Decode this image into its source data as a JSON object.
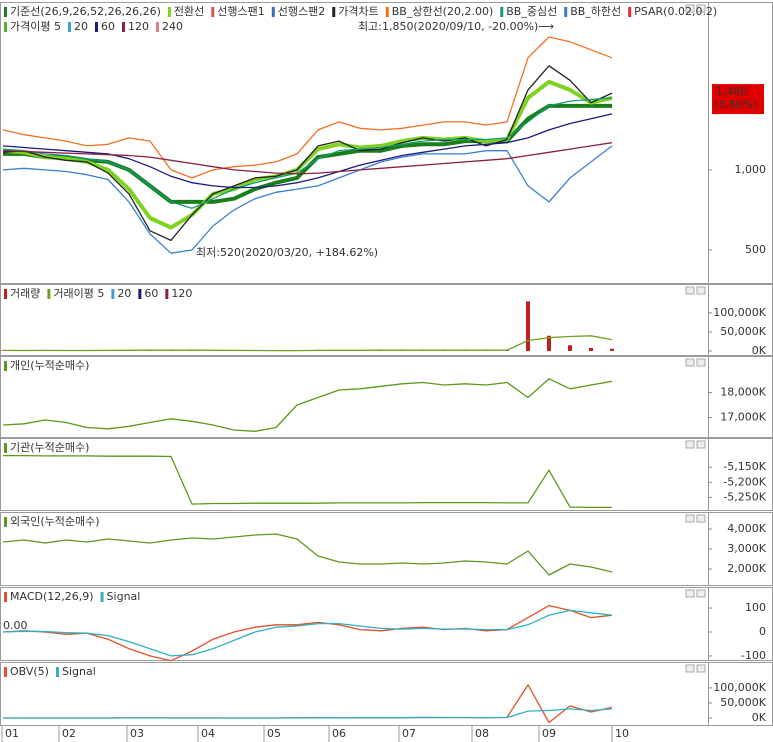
{
  "chart_data": [
    {
      "type": "line",
      "ylim": [
        300,
        2030
      ],
      "yticks": [
        {
          "value": 1000,
          "label": "1,000"
        },
        500
      ],
      "series": [
        {
          "name": "기준선(26,9,26,52,26,26,26)",
          "color": "#1a7f1a",
          "values": [
            1100,
            1100,
            1080,
            1080,
            1060,
            1050,
            1000,
            900,
            800,
            800,
            800,
            820,
            880,
            920,
            950,
            1080,
            1100,
            1120,
            1120,
            1150,
            1160,
            1160,
            1180,
            1180,
            1180,
            1320,
            1400,
            1400,
            1400,
            1400
          ]
        },
        {
          "name": "전환선",
          "color": "#7fd320",
          "values": [
            1120,
            1110,
            1080,
            1070,
            1050,
            1000,
            880,
            700,
            640,
            720,
            850,
            880,
            940,
            960,
            1000,
            1130,
            1160,
            1140,
            1150,
            1180,
            1200,
            1190,
            1200,
            1180,
            1190,
            1450,
            1550,
            1500,
            1420,
            1450
          ]
        },
        {
          "name": "선행스팬1",
          "color": "#e0504a"
        },
        {
          "name": "선행스팬2",
          "color": "#3a6fc0"
        },
        {
          "name": "가격차트",
          "color": "#222222",
          "values": [
            1110,
            1120,
            1080,
            1060,
            1050,
            980,
            850,
            620,
            560,
            720,
            850,
            900,
            950,
            960,
            1000,
            1150,
            1180,
            1120,
            1130,
            1170,
            1200,
            1180,
            1200,
            1150,
            1190,
            1500,
            1650,
            1560,
            1420,
            1480
          ]
        },
        {
          "name": "BB_상한선(20,2.00)",
          "color": "#f07020",
          "values": [
            1250,
            1220,
            1200,
            1180,
            1150,
            1160,
            1200,
            1180,
            1000,
            950,
            1000,
            1020,
            1030,
            1050,
            1100,
            1250,
            1300,
            1260,
            1250,
            1260,
            1280,
            1300,
            1300,
            1280,
            1300,
            1700,
            1830,
            1800,
            1750,
            1700
          ]
        },
        {
          "name": "BB_중심선",
          "color": "#139a7a",
          "values": [
            1130,
            1120,
            1100,
            1090,
            1070,
            1050,
            1000,
            900,
            800,
            760,
            820,
            880,
            920,
            950,
            980,
            1070,
            1120,
            1130,
            1140,
            1160,
            1180,
            1190,
            1190,
            1190,
            1200,
            1300,
            1400,
            1430,
            1440,
            1450
          ]
        },
        {
          "name": "BB_하한선",
          "color": "#3a7fd0",
          "values": [
            1000,
            1010,
            1000,
            990,
            970,
            940,
            800,
            600,
            480,
            500,
            650,
            750,
            820,
            860,
            880,
            900,
            950,
            1000,
            1050,
            1080,
            1100,
            1100,
            1100,
            1120,
            1120,
            900,
            800,
            950,
            1050,
            1150
          ]
        },
        {
          "name": "PSAR(0.02,0.2)",
          "color": "#e03030"
        },
        {
          "name": "가격이평 5",
          "color": "#50b030"
        },
        {
          "name": "20",
          "color": "#3fa0d0"
        },
        {
          "name": "60",
          "color": "#1a1a80",
          "values": [
            1150,
            1140,
            1130,
            1120,
            1110,
            1100,
            1070,
            1020,
            960,
            920,
            900,
            890,
            890,
            900,
            920,
            950,
            990,
            1030,
            1060,
            1090,
            1110,
            1130,
            1150,
            1160,
            1170,
            1200,
            1250,
            1290,
            1320,
            1350
          ]
        },
        {
          "name": "120",
          "color": "#8a2040",
          "values": [
            1120,
            1115,
            1110,
            1105,
            1100,
            1095,
            1090,
            1080,
            1060,
            1040,
            1020,
            1000,
            990,
            980,
            975,
            980,
            990,
            1000,
            1010,
            1020,
            1030,
            1040,
            1050,
            1060,
            1070,
            1090,
            1110,
            1130,
            1150,
            1170
          ]
        },
        {
          "name": "240",
          "color": "#e08080"
        }
      ],
      "annotations": [
        "최고:1,850(2020/09/10, -20.00%)⟶",
        "최저:520(2020/03/20, +184.62%)"
      ],
      "last_price": {
        "value": 1480,
        "label": "1,480"
      },
      "change_label": "(3.86%)"
    },
    {
      "type": "bar",
      "ylim": [
        0,
        160000
      ],
      "yticks": [
        {
          "value": 100000,
          "label": "100,000K"
        },
        {
          "value": 50000,
          "label": "50,000K"
        },
        {
          "value": 0,
          "label": "0K"
        }
      ],
      "series": [
        {
          "name": "거래량",
          "color": "#c02020",
          "values": [
            1500,
            1200,
            1800,
            1000,
            1500,
            2000,
            3000,
            2500,
            2000,
            1500,
            1200,
            1000,
            900,
            1000,
            1500,
            3000,
            2500,
            1500,
            1500,
            2000,
            2500,
            2000,
            2000,
            1500,
            2000,
            130000,
            40000,
            15000,
            8000,
            6000
          ]
        },
        {
          "name": "거래이평 5",
          "color": "#70a020",
          "values": [
            1500,
            1400,
            1500,
            1400,
            1400,
            1500,
            1900,
            2000,
            2100,
            2000,
            1800,
            1600,
            1300,
            1100,
            1100,
            1500,
            1800,
            1900,
            2000,
            2100,
            2000,
            2000,
            2100,
            2000,
            2000,
            27500,
            35000,
            38000,
            40000,
            30000
          ]
        },
        {
          "name": "20",
          "color": "#3fa0d0"
        },
        {
          "name": "60",
          "color": "#1a1a80"
        },
        {
          "name": "120",
          "color": "#8a2040"
        }
      ]
    },
    {
      "type": "line",
      "ylim": [
        16300,
        18900
      ],
      "yticks": [
        {
          "value": 18000,
          "label": "18,000K"
        },
        {
          "value": 17000,
          "label": "17,000K"
        }
      ],
      "series": [
        {
          "name": "개인(누적순매수)",
          "color": "#5a9a1a",
          "values": [
            16700,
            16750,
            16900,
            16800,
            16600,
            16550,
            16650,
            16800,
            16950,
            16850,
            16700,
            16500,
            16450,
            16600,
            17500,
            17800,
            18100,
            18150,
            18250,
            18350,
            18400,
            18300,
            18350,
            18300,
            18400,
            17800,
            18550,
            18150,
            18300,
            18450
          ]
        }
      ]
    },
    {
      "type": "line",
      "ylim": [
        -5285,
        -5100
      ],
      "yticks": [
        {
          "value": -5150,
          "label": "-5,150K"
        },
        {
          "value": -5200,
          "label": "-5,200K"
        },
        {
          "value": -5250,
          "label": "-5,250K"
        }
      ],
      "series": [
        {
          "name": "기관(누적순매수)",
          "color": "#5a9a1a",
          "values": [
            -5112,
            -5112,
            -5113,
            -5113,
            -5113,
            -5114,
            -5114,
            -5114,
            -5115,
            -5272,
            -5270,
            -5270,
            -5269,
            -5269,
            -5269,
            -5269,
            -5268,
            -5268,
            -5268,
            -5268,
            -5267,
            -5267,
            -5267,
            -5267,
            -5268,
            -5268,
            -5160,
            -5282,
            -5283,
            -5283
          ]
        }
      ]
    },
    {
      "type": "line",
      "ylim": [
        1350,
        4550
      ],
      "yticks": [
        {
          "value": 4000,
          "label": "4,000K"
        },
        {
          "value": 3000,
          "label": "3,000K"
        },
        {
          "value": 2000,
          "label": "2,000K"
        }
      ],
      "series": [
        {
          "name": "외국인(누적순매수)",
          "color": "#5a9a1a",
          "values": [
            3350,
            3450,
            3300,
            3450,
            3350,
            3500,
            3400,
            3300,
            3450,
            3550,
            3500,
            3600,
            3700,
            3750,
            3500,
            2650,
            2350,
            2250,
            2250,
            2300,
            2250,
            2300,
            2400,
            2350,
            2250,
            2900,
            1700,
            2250,
            2100,
            1850
          ]
        }
      ]
    },
    {
      "type": "line",
      "ylim": [
        -117,
        167
      ],
      "yticks": [
        100,
        0,
        -100
      ],
      "annotations": [
        "0.00"
      ],
      "series": [
        {
          "name": "MACD(12,26,9)",
          "color": "#e0502a",
          "values": [
            0,
            5,
            0,
            -10,
            -5,
            -30,
            -70,
            -100,
            -120,
            -80,
            -30,
            0,
            20,
            30,
            30,
            40,
            30,
            10,
            5,
            15,
            20,
            10,
            15,
            5,
            10,
            60,
            110,
            90,
            60,
            70
          ]
        },
        {
          "name": "Signal",
          "color": "#30b0c0",
          "values": [
            0,
            3,
            2,
            -3,
            -5,
            -15,
            -40,
            -70,
            -100,
            -95,
            -70,
            -35,
            0,
            20,
            25,
            35,
            35,
            25,
            15,
            12,
            15,
            12,
            13,
            10,
            10,
            30,
            70,
            90,
            80,
            70
          ]
        }
      ]
    },
    {
      "type": "line",
      "ylim": [
        -20000,
        166000
      ],
      "yticks": [
        {
          "value": 100000,
          "label": "100,000K"
        },
        {
          "value": 50000,
          "label": "50,000K"
        },
        {
          "value": 0,
          "label": "0K"
        }
      ],
      "series": [
        {
          "name": "OBV(5)",
          "color": "#e0502a",
          "values": [
            0,
            0,
            0,
            0,
            0,
            0,
            500,
            500,
            0,
            0,
            0,
            0,
            0,
            0,
            1000,
            1500,
            1000,
            500,
            500,
            1000,
            2000,
            1500,
            1500,
            1000,
            2000,
            110000,
            -15000,
            40000,
            20000,
            35000
          ]
        },
        {
          "name": "Signal",
          "color": "#30b0c0",
          "values": [
            0,
            0,
            0,
            0,
            0,
            0,
            100,
            200,
            200,
            200,
            100,
            0,
            0,
            0,
            200,
            500,
            700,
            800,
            900,
            1000,
            1200,
            1300,
            1400,
            1400,
            1500,
            23000,
            25000,
            30000,
            25000,
            30000
          ]
        }
      ]
    }
  ],
  "x_axis": {
    "labels": [
      "01",
      "02",
      "03",
      "04",
      "05",
      "06",
      "07",
      "08",
      "09",
      "10"
    ]
  }
}
